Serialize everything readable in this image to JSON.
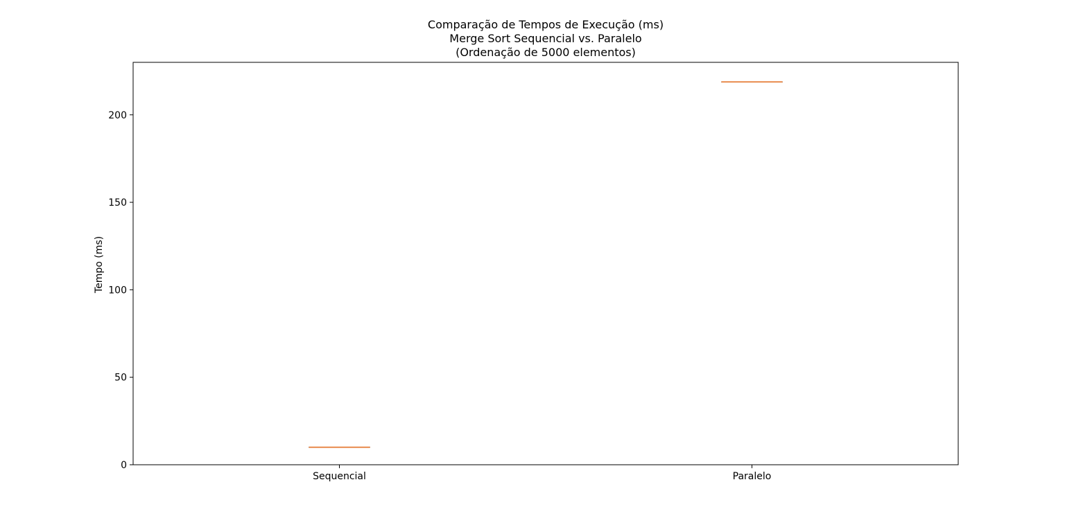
{
  "chart_data": {
    "type": "boxplot",
    "title_lines": [
      "Comparação de Tempos de Execução (ms)",
      "Merge Sort Sequencial vs. Paralelo",
      "(Ordenação de 5000 elementos)"
    ],
    "xlabel": "",
    "ylabel": "Tempo (ms)",
    "categories": [
      "Sequencial",
      "Paralelo"
    ],
    "series": [
      {
        "category": "Sequencial",
        "min": 10.0,
        "q1": 10.0,
        "median": 10.0,
        "q3": 10.0,
        "max": 10.0
      },
      {
        "category": "Paralelo",
        "min": 218.8,
        "q1": 218.8,
        "median": 218.8,
        "q3": 218.8,
        "max": 218.8
      }
    ],
    "ylim": [
      0,
      230
    ],
    "yticks": [
      0,
      50,
      100,
      150,
      200
    ],
    "grid": false,
    "colors": {
      "median": "#e8894a",
      "box": "#7a6a5e",
      "axes": "#000000",
      "background": "#ffffff"
    }
  }
}
